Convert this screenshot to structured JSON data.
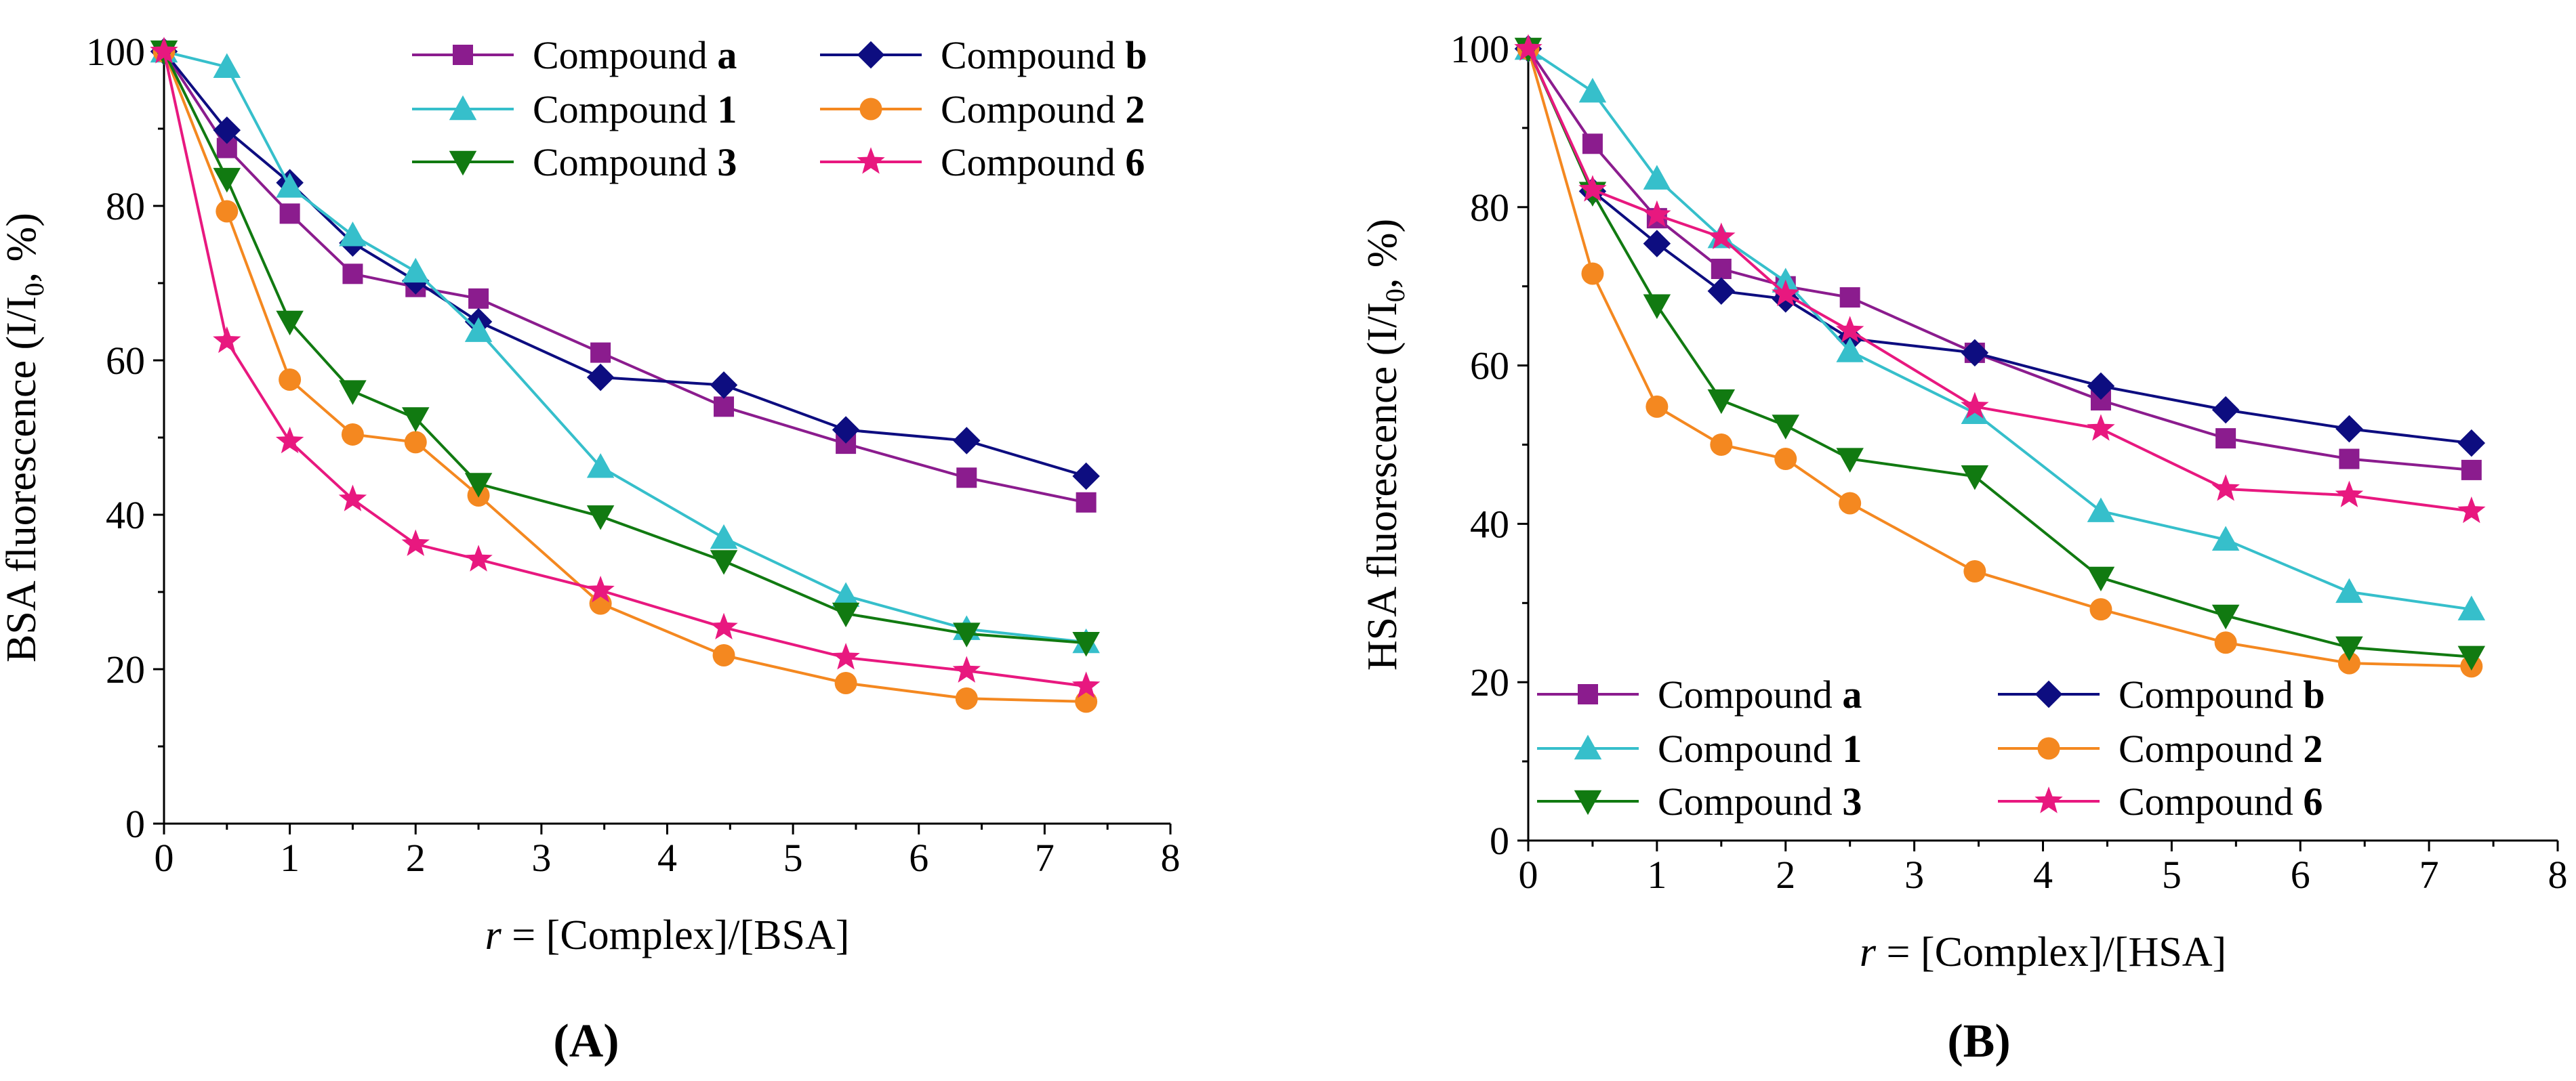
{
  "chart_data": [
    {
      "type": "line",
      "panel_label": "(A)",
      "ylabel": "BSA fluorescence (I/I0, %)",
      "ylabel_parts": {
        "pre": "BSA fluorescence (I/I",
        "sub": "0",
        "post": ", %)"
      },
      "xlabel_italic": "r",
      "xlabel_rest": " = [Complex]/[BSA]",
      "xlim": [
        0,
        8
      ],
      "ylim": [
        0,
        100
      ],
      "xticks": [
        "0",
        "1",
        "2",
        "3",
        "4",
        "5",
        "6",
        "7",
        "8"
      ],
      "yticks": [
        "0",
        "20",
        "40",
        "60",
        "80",
        "100"
      ],
      "legend_position": "top-right",
      "x": [
        0,
        0.5,
        1,
        1.5,
        2,
        2.5,
        3.47,
        4.45,
        5.42,
        6.38,
        7.33
      ],
      "series": [
        {
          "name": "Compound a",
          "label_pre": "Compound ",
          "label_bold": "a",
          "color": "#8B1C8E",
          "marker": "square",
          "values": [
            100,
            87.5,
            79,
            71.2,
            69.5,
            68,
            61,
            54,
            49.2,
            44.8,
            41.6
          ]
        },
        {
          "name": "Compound b",
          "label_pre": "Compound ",
          "label_bold": "b",
          "color": "#0D0D80",
          "marker": "diamond",
          "values": [
            100,
            89.8,
            83,
            75.2,
            70.3,
            65,
            57.8,
            56.8,
            51,
            49.6,
            45
          ]
        },
        {
          "name": "Compound 1",
          "label_pre": "Compound ",
          "label_bold": "1",
          "color": "#36BFCB",
          "marker": "triangle-up",
          "values": [
            100,
            98,
            82.5,
            76.2,
            71.5,
            63.8,
            46.2,
            37,
            29.5,
            25.2,
            23.5
          ]
        },
        {
          "name": "Compound 2",
          "label_pre": "Compound ",
          "label_bold": "2",
          "color": "#F48820",
          "marker": "circle",
          "values": [
            100,
            79.3,
            57.5,
            50.4,
            49.4,
            42.5,
            28.5,
            21.8,
            18.2,
            16.2,
            15.8
          ]
        },
        {
          "name": "Compound 3",
          "label_pre": "Compound ",
          "label_bold": "3",
          "color": "#117A11",
          "marker": "triangle-down",
          "values": [
            100,
            83.5,
            65,
            56,
            52.5,
            44,
            39.8,
            34,
            27.2,
            24.6,
            23.4
          ]
        },
        {
          "name": "Compound 6",
          "label_pre": "Compound ",
          "label_bold": "6",
          "color": "#E8187F",
          "marker": "star",
          "values": [
            100,
            62.5,
            49.5,
            42,
            36.2,
            34.2,
            30.2,
            25.4,
            21.5,
            19.8,
            17.8
          ]
        }
      ]
    },
    {
      "type": "line",
      "panel_label": "(B)",
      "ylabel": "HSA fluorescence (I/I0, %)",
      "ylabel_parts": {
        "pre": "HSA fluorescence (I/I",
        "sub": "0",
        "post": ", %)"
      },
      "xlabel_italic": "r",
      "xlabel_rest": " = [Complex]/[HSA]",
      "xlim": [
        0,
        8
      ],
      "ylim": [
        0,
        100
      ],
      "xticks": [
        "0",
        "1",
        "2",
        "3",
        "4",
        "5",
        "6",
        "7",
        "8"
      ],
      "yticks": [
        "0",
        "20",
        "40",
        "60",
        "80",
        "100"
      ],
      "legend_position": "bottom-center",
      "x": [
        0,
        0.5,
        1,
        1.5,
        2,
        2.5,
        3.47,
        4.45,
        5.42,
        6.38,
        7.33
      ],
      "series": [
        {
          "name": "Compound a",
          "label_pre": "Compound ",
          "label_bold": "a",
          "color": "#8B1C8E",
          "marker": "square",
          "values": [
            100,
            88,
            78.6,
            72.2,
            70,
            68.6,
            61.6,
            55.6,
            50.8,
            48.2,
            46.8
          ]
        },
        {
          "name": "Compound b",
          "label_pre": "Compound ",
          "label_bold": "b",
          "color": "#0D0D80",
          "marker": "diamond",
          "values": [
            100,
            82,
            75.4,
            69.4,
            68.4,
            63.4,
            61.6,
            57.4,
            54.4,
            52,
            50.2
          ]
        },
        {
          "name": "Compound 1",
          "label_pre": "Compound ",
          "label_bold": "1",
          "color": "#36BFCB",
          "marker": "triangle-up",
          "values": [
            100,
            94.6,
            83.6,
            76.2,
            70.6,
            61.8,
            54,
            41.6,
            38,
            31.4,
            29.2
          ]
        },
        {
          "name": "Compound 2",
          "label_pre": "Compound ",
          "label_bold": "2",
          "color": "#F48820",
          "marker": "circle",
          "values": [
            100,
            71.6,
            54.8,
            50,
            48.2,
            42.6,
            34,
            29.2,
            25,
            22.4,
            22
          ]
        },
        {
          "name": "Compound 3",
          "label_pre": "Compound ",
          "label_bold": "3",
          "color": "#117A11",
          "marker": "triangle-down",
          "values": [
            100,
            81.8,
            67.6,
            55.6,
            52.4,
            48.2,
            46,
            33.2,
            28.4,
            24.4,
            23.2
          ]
        },
        {
          "name": "Compound 6",
          "label_pre": "Compound ",
          "label_bold": "6",
          "color": "#E8187F",
          "marker": "star",
          "values": [
            100,
            82.2,
            79,
            76.2,
            69,
            64.4,
            54.8,
            52,
            44.4,
            43.6,
            41.6
          ]
        }
      ]
    }
  ]
}
